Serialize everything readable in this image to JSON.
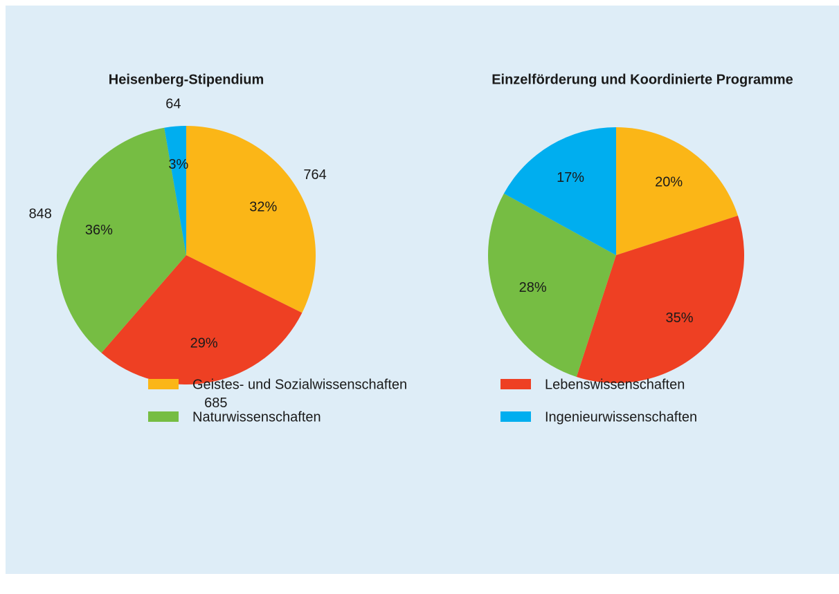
{
  "chart_data": [
    {
      "type": "pie",
      "title": "Heisenberg-Stipendium",
      "values": [
        764,
        685,
        848,
        64
      ],
      "percent_labels": [
        "32%",
        "29%",
        "36%",
        "3%"
      ]
    },
    {
      "type": "pie",
      "title": "Einzelförderung und Koordinierte Programme",
      "values": [
        20,
        35,
        28,
        17
      ],
      "value_labels": [
        "20%",
        "35%",
        "28%",
        "17%"
      ]
    }
  ],
  "legend": {
    "categories": [
      "Geistes- und Sozialwissenschaften",
      "Lebenswissenschaften",
      "Naturwissenschaften",
      "Ingenieurwissenschaften"
    ],
    "colors": [
      "#fbb617",
      "#ee4023",
      "#76bd43",
      "#00aeef"
    ]
  }
}
